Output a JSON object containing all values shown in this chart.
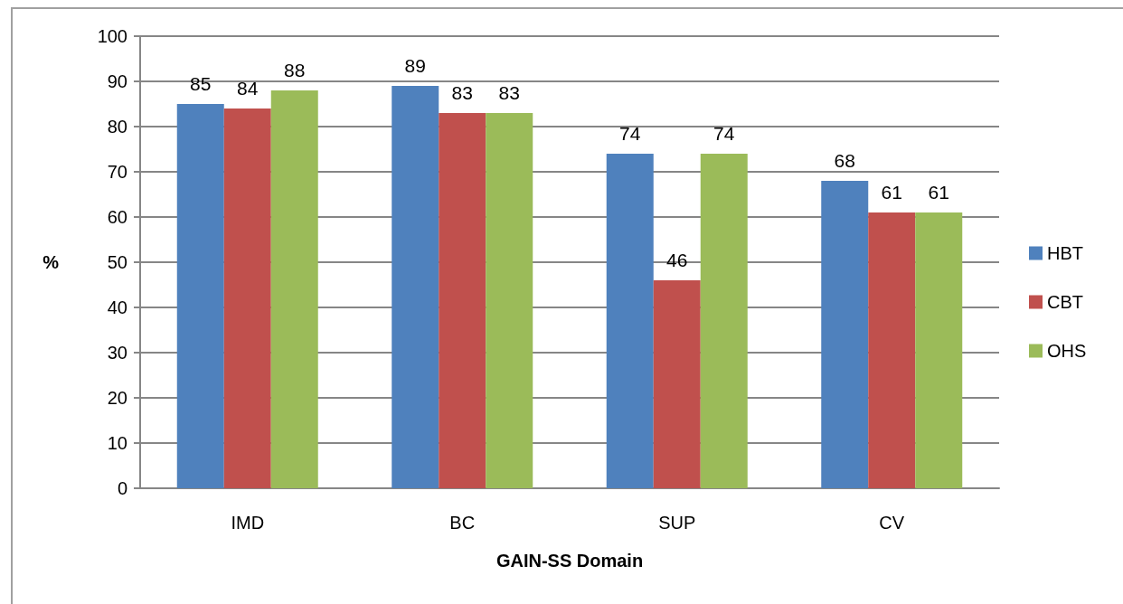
{
  "chart_data": {
    "type": "bar",
    "xlabel": "GAIN-SS Domain",
    "ylabel": "%",
    "categories": [
      "IMD",
      "BC",
      "SUP",
      "CV"
    ],
    "series": [
      {
        "name": "HBT",
        "color": "#4f81bd",
        "values": [
          85,
          89,
          74,
          68
        ]
      },
      {
        "name": "CBT",
        "color": "#c0504d",
        "values": [
          84,
          83,
          46,
          61
        ]
      },
      {
        "name": "OHS",
        "color": "#9bbb59",
        "values": [
          88,
          83,
          74,
          61
        ]
      }
    ],
    "ylim": [
      0,
      100
    ],
    "yticks": [
      0,
      10,
      20,
      30,
      40,
      50,
      60,
      70,
      80,
      90,
      100
    ],
    "grid": "y",
    "legend": "right",
    "data_labels": true
  }
}
